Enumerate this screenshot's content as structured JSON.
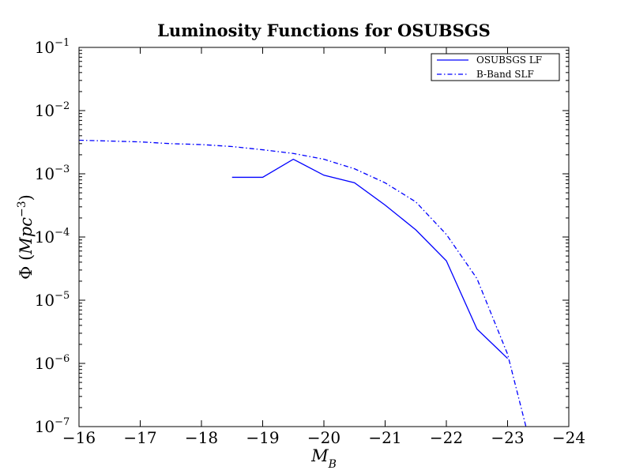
{
  "chart_data": {
    "type": "line",
    "title": "Luminosity Functions for OSUBSGS",
    "xlabel_base": "M",
    "xlabel_sub": "B",
    "ylabel_prefix": "Φ (",
    "ylabel_base": "Mpc",
    "ylabel_sup": "−3",
    "ylabel_suffix": ")",
    "x_axis_reversed": true,
    "xlim": [
      -16,
      -24
    ],
    "x_ticks": [
      {
        "value": -16,
        "label": "−16"
      },
      {
        "value": -17,
        "label": "−17"
      },
      {
        "value": -18,
        "label": "−18"
      },
      {
        "value": -19,
        "label": "−19"
      },
      {
        "value": -20,
        "label": "−20"
      },
      {
        "value": -21,
        "label": "−21"
      },
      {
        "value": -22,
        "label": "−22"
      },
      {
        "value": -23,
        "label": "−23"
      },
      {
        "value": -24,
        "label": "−24"
      }
    ],
    "y_scale": "log",
    "ylim": [
      1e-07,
      0.1
    ],
    "y_ticks": [
      {
        "value": 0.1,
        "base": "10",
        "exp": "−1"
      },
      {
        "value": 0.01,
        "base": "10",
        "exp": "−2"
      },
      {
        "value": 0.001,
        "base": "10",
        "exp": "−3"
      },
      {
        "value": 0.0001,
        "base": "10",
        "exp": "−4"
      },
      {
        "value": 1e-05,
        "base": "10",
        "exp": "−5"
      },
      {
        "value": 1e-06,
        "base": "10",
        "exp": "−6"
      },
      {
        "value": 1e-07,
        "base": "10",
        "exp": "−7"
      }
    ],
    "grid": false,
    "legend_position": "top-right",
    "series": [
      {
        "name": "OSUBSGS LF",
        "color": "#0000ff",
        "style": "solid",
        "points": [
          [
            -18.5,
            0.00088
          ],
          [
            -19.0,
            0.00088
          ],
          [
            -19.5,
            0.0017
          ],
          [
            -20.0,
            0.00095
          ],
          [
            -20.5,
            0.00072
          ],
          [
            -21.0,
            0.00032
          ],
          [
            -21.5,
            0.00013
          ],
          [
            -22.0,
            4.2e-05
          ],
          [
            -22.5,
            3.5e-06
          ],
          [
            -23.0,
            1.2e-06
          ]
        ]
      },
      {
        "name": "B-Band SLF",
        "color": "#0000ff",
        "style": "dashdot",
        "points": [
          [
            -16.0,
            0.0034
          ],
          [
            -16.5,
            0.0033
          ],
          [
            -17.0,
            0.0032
          ],
          [
            -17.5,
            0.003
          ],
          [
            -18.0,
            0.0029
          ],
          [
            -18.5,
            0.0027
          ],
          [
            -19.0,
            0.0024
          ],
          [
            -19.5,
            0.0021
          ],
          [
            -20.0,
            0.0017
          ],
          [
            -20.5,
            0.0012
          ],
          [
            -21.0,
            0.00072
          ],
          [
            -21.5,
            0.00036
          ],
          [
            -22.0,
            0.00011
          ],
          [
            -22.5,
            2.2e-05
          ],
          [
            -23.0,
            1.4e-06
          ],
          [
            -23.3,
            1e-07
          ]
        ]
      }
    ]
  }
}
